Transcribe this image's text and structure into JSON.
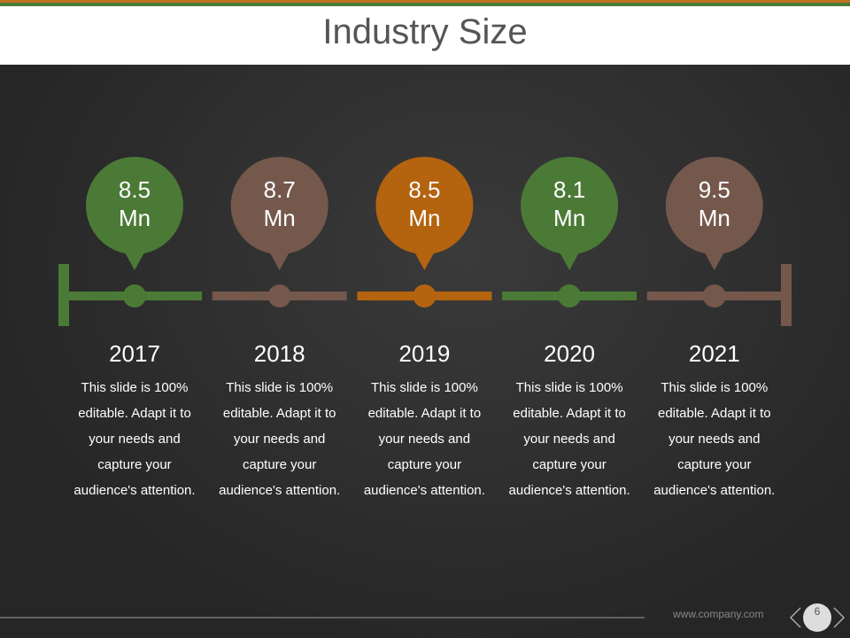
{
  "header": {
    "title": "Industry Size"
  },
  "items": [
    {
      "value": "8.5",
      "unit": "Mn",
      "year": "2017",
      "text": "This slide is 100% editable. Adapt it to your needs and capture your audience's attention.",
      "color": "#4b7a36"
    },
    {
      "value": "8.7",
      "unit": "Mn",
      "year": "2018",
      "text": "This slide is 100% editable. Adapt it to your needs and capture your audience's attention.",
      "color": "#74584c"
    },
    {
      "value": "8.5",
      "unit": "Mn",
      "year": "2019",
      "text": "This slide is 100% editable. Adapt it to your needs and capture your audience's attention.",
      "color": "#b4630f"
    },
    {
      "value": "8.1",
      "unit": "Mn",
      "year": "2020",
      "text": "This slide is 100% editable. Adapt it to your needs and capture your audience's attention.",
      "color": "#4b7a36"
    },
    {
      "value": "9.5",
      "unit": "Mn",
      "year": "2021",
      "text": "This slide is 100% editable. Adapt it to your needs and capture your audience's attention.",
      "color": "#74584c"
    }
  ],
  "footer": {
    "url": "www.company.com",
    "page": "6"
  }
}
